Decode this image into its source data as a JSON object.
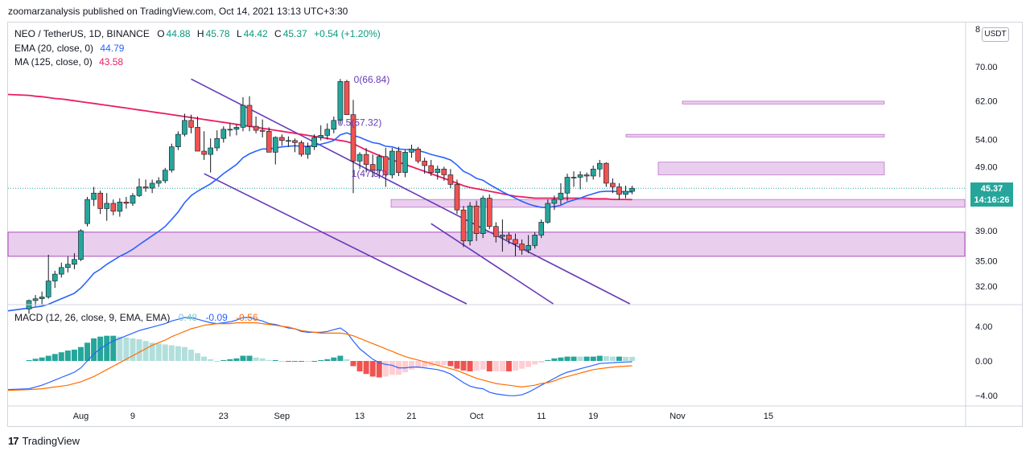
{
  "header": {
    "published": "zoomarzanalysis published on TradingView.com, Oct 14, 2021 13:13 UTC+3:30"
  },
  "legend": {
    "symbol": "NEO / TetherUS, 1D, BINANCE",
    "o_label": "O",
    "o": "44.88",
    "h_label": "H",
    "h": "45.78",
    "l_label": "L",
    "l": "44.42",
    "c_label": "C",
    "c": "45.37",
    "change": "+0.54 (+1.20%)",
    "ema_label": "EMA (20, close, 0)",
    "ema_value": "44.79",
    "ma_label": "MA (125, close, 0)",
    "ma_value": "43.58",
    "macd_label": "MACD (12, 26, close, 9, EMA, EMA)",
    "macd_hist": "0.48",
    "macd_line": "-0.09",
    "macd_signal": "-0.56"
  },
  "price_scale": {
    "currency": "USDT",
    "top_partial": "8",
    "current_price": "45.37",
    "countdown": "14:16:26"
  },
  "brand": {
    "name": "TradingView",
    "logo_text": "17"
  },
  "colors": {
    "up": "#26a69a",
    "down": "#ef5350",
    "ema": "#2962ff",
    "ma": "#e91e63",
    "channel": "#673ab7",
    "zone_fill": "#e1bee7",
    "zone_border": "#9c27b0",
    "macd": "#2962ff",
    "signal": "#ff6d00"
  },
  "chart_data": [
    {
      "type": "candlestick",
      "title": "NEO / TetherUS, 1D, BINANCE",
      "y_scale": "log",
      "y_ticks": [
        70,
        62,
        54,
        49,
        39,
        35,
        32
      ],
      "y_tick_labels": [
        "70.00",
        "62.00",
        "54.00",
        "49.00",
        "39.00",
        "35.00",
        "32.00"
      ],
      "x_ticks": [
        {
          "label": "Aug",
          "day": 31
        },
        {
          "label": "9",
          "day": 39
        },
        {
          "label": "23",
          "day": 53
        },
        {
          "label": "Sep",
          "day": 62
        },
        {
          "label": "13",
          "day": 74
        },
        {
          "label": "21",
          "day": 82
        },
        {
          "label": "Oct",
          "day": 92
        },
        {
          "label": "11",
          "day": 102
        },
        {
          "label": "19",
          "day": 110
        },
        {
          "label": "Nov",
          "day": 123
        },
        {
          "label": "15",
          "day": 137
        }
      ],
      "candles_ohlc": [
        [
          29.5,
          30.5,
          29.0,
          30.4
        ],
        [
          30.4,
          31.0,
          29.8,
          30.6
        ],
        [
          30.6,
          31.4,
          30.0,
          30.8
        ],
        [
          30.8,
          35.8,
          30.6,
          32.6
        ],
        [
          32.6,
          33.8,
          31.8,
          33.4
        ],
        [
          33.4,
          34.8,
          33.0,
          34.2
        ],
        [
          34.2,
          35.6,
          33.6,
          34.6
        ],
        [
          34.6,
          36.0,
          34.0,
          35.2
        ],
        [
          35.2,
          39.2,
          35.0,
          39.0
        ],
        [
          40.0,
          44.0,
          39.6,
          43.6
        ],
        [
          43.6,
          45.6,
          42.6,
          44.6
        ],
        [
          44.6,
          45.0,
          41.4,
          42.2
        ],
        [
          42.2,
          44.6,
          40.4,
          43.0
        ],
        [
          43.0,
          43.6,
          41.2,
          41.8
        ],
        [
          41.8,
          43.8,
          41.0,
          43.2
        ],
        [
          43.2,
          44.0,
          42.2,
          43.0
        ],
        [
          43.0,
          44.6,
          42.6,
          44.2
        ],
        [
          44.2,
          47.0,
          44.0,
          45.6
        ],
        [
          45.6,
          46.8,
          44.8,
          45.4
        ],
        [
          45.4,
          46.8,
          44.6,
          46.2
        ],
        [
          46.2,
          47.2,
          45.6,
          46.6
        ],
        [
          46.6,
          48.8,
          46.2,
          48.4
        ],
        [
          48.4,
          53.2,
          48.0,
          52.6
        ],
        [
          52.6,
          55.6,
          52.0,
          55.0
        ],
        [
          55.0,
          59.2,
          54.6,
          57.8
        ],
        [
          57.8,
          59.0,
          55.2,
          56.4
        ],
        [
          56.4,
          58.6,
          55.2,
          51.8
        ],
        [
          51.8,
          55.6,
          50.2,
          51.2
        ],
        [
          51.2,
          54.2,
          48.0,
          52.4
        ],
        [
          52.4,
          55.8,
          51.8,
          54.2
        ],
        [
          54.2,
          56.6,
          53.4,
          56.0
        ],
        [
          56.0,
          57.2,
          54.6,
          56.0
        ],
        [
          56.0,
          57.0,
          54.8,
          56.4
        ],
        [
          56.4,
          62.8,
          55.6,
          61.0
        ],
        [
          61.0,
          63.0,
          55.6,
          56.6
        ],
        [
          56.6,
          58.6,
          55.2,
          55.8
        ],
        [
          55.8,
          58.0,
          54.4,
          55.6
        ],
        [
          55.6,
          56.4,
          53.4,
          51.6
        ],
        [
          51.6,
          54.6,
          49.4,
          54.4
        ],
        [
          54.4,
          55.0,
          52.8,
          53.8
        ],
        [
          53.8,
          54.6,
          52.6,
          53.8
        ],
        [
          53.8,
          54.2,
          51.6,
          53.4
        ],
        [
          53.4,
          53.8,
          50.8,
          51.2
        ],
        [
          51.2,
          53.4,
          50.4,
          52.6
        ],
        [
          52.6,
          55.0,
          52.0,
          54.4
        ],
        [
          54.4,
          56.8,
          53.8,
          54.8
        ],
        [
          54.8,
          57.2,
          54.0,
          56.0
        ],
        [
          56.0,
          58.6,
          55.2,
          57.8
        ],
        [
          57.8,
          67.0,
          57.0,
          66.4
        ],
        [
          66.4,
          66.8,
          59.8,
          59.0
        ],
        [
          59.0,
          62.2,
          44.6,
          50.0
        ],
        [
          50.0,
          51.6,
          48.6,
          51.2
        ],
        [
          51.2,
          52.4,
          48.0,
          49.4
        ],
        [
          49.4,
          51.2,
          47.2,
          48.4
        ],
        [
          48.4,
          51.2,
          47.0,
          50.8
        ],
        [
          50.8,
          52.4,
          45.6,
          47.6
        ],
        [
          47.6,
          52.4,
          47.0,
          51.8
        ],
        [
          51.8,
          52.6,
          47.4,
          48.0
        ],
        [
          48.0,
          52.0,
          47.2,
          51.6
        ],
        [
          51.6,
          53.0,
          50.6,
          52.2
        ],
        [
          52.2,
          52.6,
          49.6,
          50.0
        ],
        [
          50.0,
          50.6,
          47.8,
          49.2
        ],
        [
          49.2,
          50.2,
          47.4,
          48.0
        ],
        [
          48.0,
          49.2,
          46.8,
          48.6
        ],
        [
          48.6,
          49.0,
          46.6,
          47.6
        ],
        [
          47.6,
          48.6,
          45.4,
          46.0
        ],
        [
          46.0,
          46.8,
          41.4,
          42.0
        ],
        [
          42.0,
          42.6,
          36.8,
          37.6
        ],
        [
          37.6,
          43.2,
          37.0,
          42.6
        ],
        [
          42.6,
          43.4,
          37.6,
          38.6
        ],
        [
          38.6,
          44.2,
          38.0,
          43.8
        ],
        [
          43.8,
          44.4,
          39.2,
          39.6
        ],
        [
          39.6,
          40.2,
          37.4,
          38.2
        ],
        [
          38.2,
          40.6,
          36.2,
          38.4
        ],
        [
          38.4,
          38.8,
          37.2,
          37.8
        ],
        [
          37.8,
          38.6,
          35.6,
          37.2
        ],
        [
          37.2,
          37.8,
          35.8,
          36.4
        ],
        [
          36.4,
          38.4,
          36.0,
          37.0
        ],
        [
          37.0,
          38.8,
          36.6,
          38.4
        ],
        [
          38.4,
          40.6,
          38.0,
          40.2
        ],
        [
          40.2,
          43.6,
          40.0,
          43.0
        ],
        [
          43.0,
          44.2,
          42.0,
          43.6
        ],
        [
          43.6,
          46.2,
          42.8,
          44.6
        ],
        [
          44.6,
          47.8,
          43.4,
          47.2
        ],
        [
          47.2,
          48.2,
          45.6,
          47.2
        ],
        [
          47.2,
          48.2,
          45.2,
          47.6
        ],
        [
          47.6,
          48.0,
          46.4,
          47.4
        ],
        [
          47.4,
          49.2,
          46.8,
          48.6
        ],
        [
          48.6,
          50.2,
          47.2,
          49.6
        ],
        [
          49.6,
          49.8,
          45.6,
          46.2
        ],
        [
          46.2,
          47.0,
          44.6,
          45.6
        ],
        [
          45.6,
          46.2,
          43.6,
          44.4
        ],
        [
          44.4,
          45.8,
          43.8,
          44.9
        ],
        [
          44.88,
          45.78,
          44.42,
          45.37
        ]
      ],
      "ema_20_series": [
        29.6,
        29.7,
        29.8,
        30.0,
        30.3,
        30.6,
        30.9,
        31.2,
        31.8,
        32.6,
        33.5,
        34.0,
        34.6,
        35.1,
        35.6,
        36.0,
        36.5,
        37.1,
        37.7,
        38.3,
        38.9,
        39.6,
        40.6,
        41.7,
        43.1,
        44.2,
        44.9,
        45.5,
        46.1,
        46.9,
        47.8,
        48.6,
        49.4,
        50.6,
        51.3,
        51.8,
        52.2,
        52.2,
        52.4,
        52.6,
        52.7,
        52.8,
        52.7,
        52.7,
        52.9,
        53.1,
        53.4,
        53.8,
        54.9,
        55.3,
        54.8,
        54.4,
        53.9,
        53.4,
        53.2,
        52.7,
        52.6,
        52.2,
        52.1,
        52.1,
        51.9,
        51.6,
        51.2,
        50.9,
        50.6,
        50.2,
        49.3,
        48.2,
        47.7,
        47.0,
        46.7,
        46.0,
        45.4,
        44.8,
        44.3,
        43.8,
        43.3,
        42.9,
        42.6,
        42.4,
        42.4,
        42.5,
        42.7,
        43.2,
        43.5,
        43.8,
        44.2,
        44.5,
        44.8,
        44.9,
        44.9,
        44.8,
        44.8,
        44.79
      ],
      "ma_125_series": [
        63.2,
        63.0,
        62.9,
        62.7,
        62.5,
        62.4,
        62.2,
        62.0,
        61.8,
        61.6,
        61.4,
        61.2,
        61.0,
        60.8,
        60.6,
        60.4,
        60.2,
        60.0,
        59.8,
        59.6,
        59.4,
        59.2,
        59.0,
        58.8,
        58.6,
        58.4,
        58.2,
        58.0,
        57.8,
        57.6,
        57.4,
        57.2,
        57.0,
        56.8,
        56.6,
        56.4,
        56.2,
        56.0,
        55.8,
        55.6,
        55.4,
        55.2,
        55.0,
        54.8,
        54.6,
        54.4,
        54.2,
        54.0,
        53.8,
        53.6,
        53.2,
        52.6,
        52.0,
        51.5,
        51.0,
        50.6,
        50.2,
        49.8,
        49.4,
        49.0,
        48.6,
        48.2,
        47.8,
        47.4,
        47.0,
        46.6,
        46.2,
        45.8,
        45.5,
        45.3,
        45.1,
        44.9,
        44.7,
        44.5,
        44.3,
        44.1,
        44.0,
        43.9,
        43.8,
        43.8,
        43.8,
        43.8,
        43.8,
        43.8,
        43.8,
        43.8,
        43.8,
        43.7,
        43.7,
        43.7,
        43.6,
        43.6,
        43.6,
        43.58
      ],
      "annotations": [
        {
          "text": "0(66.84)",
          "value": 66.84
        },
        {
          "text": "0.5(57.32)",
          "value": 57.32
        },
        {
          "text": "1(47.80)",
          "value": 47.8
        }
      ],
      "zones": [
        {
          "from_price": 35.6,
          "to_price": 38.8
        },
        {
          "from_price": 42.4,
          "to_price": 43.6
        },
        {
          "from_price": 47.6,
          "to_price": 49.8
        },
        {
          "from_price": 54.5,
          "to_price": 55.0
        },
        {
          "from_price": 61.3,
          "to_price": 61.9
        }
      ],
      "channel_lines": [
        {
          "from": [
            48,
            67.0
          ],
          "to": [
            121,
            28.2
          ]
        },
        {
          "from": [
            50,
            47.8
          ],
          "to": [
            96,
            28.2
          ]
        },
        {
          "from": [
            85,
            40.0
          ],
          "to": [
            108,
            28.2
          ]
        }
      ]
    },
    {
      "type": "macd",
      "title": "MACD (12, 26, close, 9, EMA, EMA)",
      "y_ticks": [
        4,
        0,
        -4
      ],
      "y_tick_labels": [
        "4.00",
        "0.00",
        "−4.00"
      ],
      "macd_series": [
        -3.2,
        -3.0,
        -2.8,
        -2.5,
        -2.2,
        -1.9,
        -1.6,
        -1.3,
        -0.8,
        0.0,
        0.8,
        1.4,
        1.9,
        2.3,
        2.6,
        2.9,
        3.2,
        3.5,
        3.7,
        3.9,
        4.1,
        4.3,
        4.6,
        4.8,
        5.0,
        5.0,
        4.8,
        4.6,
        4.4,
        4.3,
        4.4,
        4.5,
        4.7,
        5.0,
        5.0,
        4.8,
        4.6,
        4.3,
        4.2,
        4.0,
        3.8,
        3.7,
        3.4,
        3.3,
        3.3,
        3.3,
        3.4,
        3.6,
        3.8,
        3.3,
        2.3,
        1.4,
        0.8,
        0.2,
        -0.2,
        -0.4,
        -0.5,
        -0.8,
        -0.8,
        -0.7,
        -0.7,
        -0.8,
        -0.9,
        -1.0,
        -1.2,
        -1.5,
        -2.0,
        -2.5,
        -2.9,
        -3.1,
        -3.2,
        -3.6,
        -3.8,
        -3.9,
        -4.0,
        -4.0,
        -3.9,
        -3.6,
        -3.2,
        -2.8,
        -2.4,
        -2.0,
        -1.6,
        -1.3,
        -1.1,
        -0.9,
        -0.7,
        -0.5,
        -0.3,
        -0.25,
        -0.2,
        -0.15,
        -0.12,
        -0.09
      ],
      "signal_series": [
        -3.3,
        -3.25,
        -3.2,
        -3.1,
        -3.0,
        -2.9,
        -2.8,
        -2.6,
        -2.4,
        -2.1,
        -1.8,
        -1.4,
        -1.0,
        -0.6,
        -0.2,
        0.2,
        0.6,
        1.0,
        1.4,
        1.8,
        2.1,
        2.4,
        2.8,
        3.1,
        3.4,
        3.7,
        3.9,
        4.1,
        4.2,
        4.3,
        4.3,
        4.3,
        4.4,
        4.4,
        4.4,
        4.4,
        4.3,
        4.2,
        4.1,
        4.0,
        3.9,
        3.7,
        3.5,
        3.4,
        3.3,
        3.2,
        3.2,
        3.2,
        3.2,
        3.1,
        2.9,
        2.6,
        2.3,
        2.0,
        1.7,
        1.4,
        1.1,
        0.8,
        0.5,
        0.3,
        0.1,
        -0.1,
        -0.3,
        -0.5,
        -0.7,
        -0.9,
        -1.1,
        -1.4,
        -1.7,
        -2.0,
        -2.2,
        -2.4,
        -2.6,
        -2.7,
        -2.8,
        -2.9,
        -3.0,
        -2.9,
        -2.8,
        -2.6,
        -2.5,
        -2.3,
        -2.0,
        -1.8,
        -1.6,
        -1.4,
        -1.2,
        -1.0,
        -0.9,
        -0.8,
        -0.7,
        -0.65,
        -0.6,
        -0.56
      ]
    }
  ]
}
